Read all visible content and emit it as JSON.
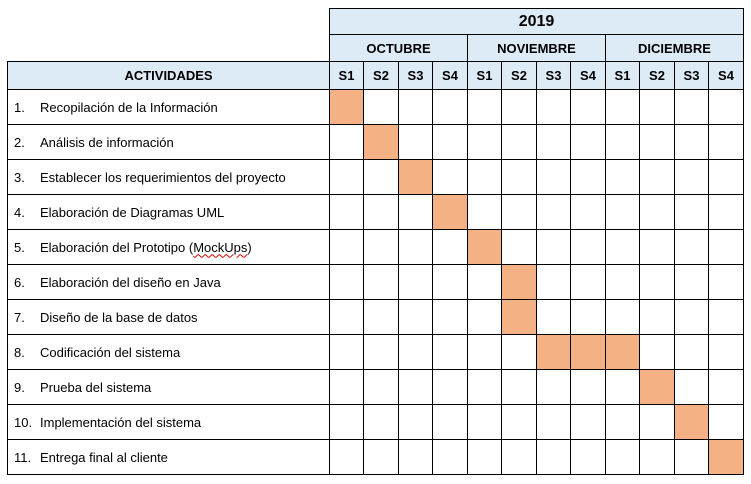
{
  "year": "2019",
  "activities_header": "ACTIVIDADES",
  "months": [
    "OCTUBRE",
    "NOVIEMBRE",
    "DICIEMBRE"
  ],
  "weeks": [
    "S1",
    "S2",
    "S3",
    "S4",
    "S1",
    "S2",
    "S3",
    "S4",
    "S1",
    "S2",
    "S3",
    "S4"
  ],
  "highlight_color": "#f4b183",
  "header_color": "#ddebf7",
  "activities": [
    {
      "num": "1.",
      "name": "Recopilación de la Información",
      "weeks": [
        0
      ]
    },
    {
      "num": "2.",
      "name": "Análisis de información",
      "weeks": [
        1
      ]
    },
    {
      "num": "3.",
      "name": "Establecer los requerimientos del proyecto",
      "weeks": [
        2
      ]
    },
    {
      "num": "4.",
      "name": "Elaboración de Diagramas UML",
      "weeks": [
        3
      ]
    },
    {
      "num": "5.",
      "name": "Elaboración del Prototipo (MockUps)",
      "weeks": [
        4
      ]
    },
    {
      "num": "6.",
      "name": "Elaboración del diseño en Java",
      "weeks": [
        5
      ]
    },
    {
      "num": "7.",
      "name": "Diseño de la base de datos",
      "weeks": [
        5
      ]
    },
    {
      "num": "8.",
      "name": "Codificación del sistema",
      "weeks": [
        6,
        7,
        8
      ]
    },
    {
      "num": "9.",
      "name": "Prueba del sistema",
      "weeks": [
        9
      ]
    },
    {
      "num": "10.",
      "name": "Implementación del sistema",
      "weeks": [
        10
      ]
    },
    {
      "num": "11.",
      "name": "Entrega final al cliente",
      "weeks": [
        11
      ]
    }
  ]
}
